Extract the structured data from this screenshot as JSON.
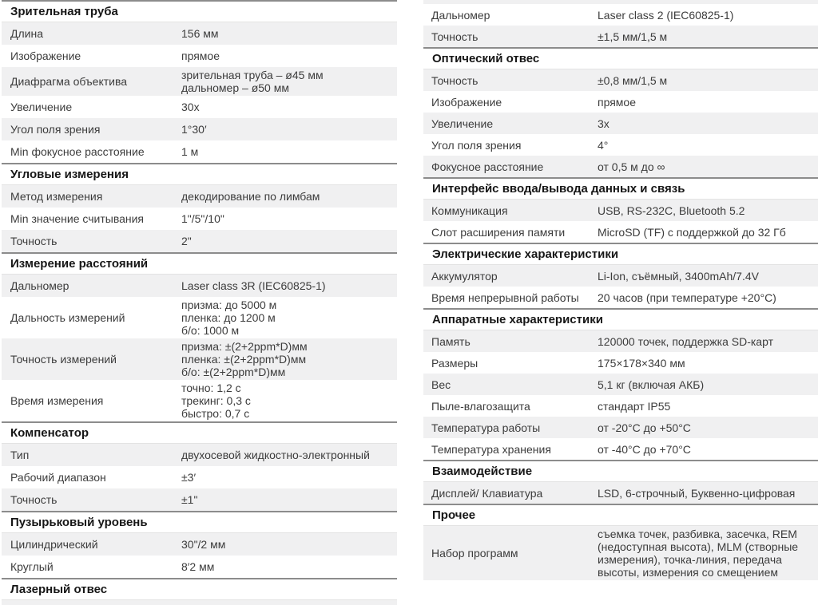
{
  "page": {
    "background": "#ffffff",
    "row_shade_color": "#f0f0f1",
    "header_border_color": "#8c8c8c",
    "text_color": "#3c3c3c"
  },
  "left": {
    "sections": [
      {
        "title": "Зрительная труба",
        "rows": [
          {
            "label": "Длина",
            "value": "156 мм"
          },
          {
            "label": "Изображение",
            "value": "прямое"
          },
          {
            "label": "Диафрагма объектива",
            "value": [
              "зрительная труба – ø45 мм",
              "дальномер – ø50 мм"
            ]
          },
          {
            "label": "Увеличение",
            "value": "30x"
          },
          {
            "label": "Угол поля зрения",
            "value": "1°30′"
          },
          {
            "label": "Min фокусное расстояние",
            "value": "1 м"
          }
        ]
      },
      {
        "title": "Угловые измерения",
        "rows": [
          {
            "label": "Метод измерения",
            "value": "декодирование по лимбам"
          },
          {
            "label": "Min значение считывания",
            "value": "1\"/5\"/10\""
          },
          {
            "label": "Точность",
            "value": "2\""
          }
        ]
      },
      {
        "title": "Измерение расстояний",
        "rows": [
          {
            "label": "Дальномер",
            "value": "Laser class 3R (IEC60825-1)"
          },
          {
            "label": "Дальность измерений",
            "value": [
              "призма: до 5000 м",
              "пленка: до 1200 м",
              "б/о: 1000 м"
            ]
          },
          {
            "label": "Точность измерений",
            "value": [
              "призма: ±(2+2ppm*D)мм",
              "пленка: ±(2+2ppm*D)мм",
              "б/о: ±(2+2ppm*D)мм"
            ]
          },
          {
            "label": "Время измерения",
            "value": [
              "точно: 1,2 с",
              "трекинг: 0,3 с",
              "быстро: 0,7 с"
            ]
          }
        ]
      },
      {
        "title": "Компенсатор",
        "rows": [
          {
            "label": "Тип",
            "value": "двухосевой жидкостно-электронный"
          },
          {
            "label": "Рабочий диапазон",
            "value": "±3′"
          },
          {
            "label": "Точность",
            "value": "±1\""
          }
        ]
      },
      {
        "title": "Пузырьковый уровень",
        "rows": [
          {
            "label": "Цилиндрический",
            "value": "30\"/2 мм"
          },
          {
            "label": "Круглый",
            "value": "8′2 мм"
          }
        ]
      },
      {
        "title": "Лазерный отвес",
        "rows": []
      }
    ]
  },
  "right": {
    "sections": [
      {
        "title": null,
        "shade_offset": 1,
        "rows": [
          {
            "label": "Дальномер",
            "value": "Laser class 2 (IEC60825-1)"
          },
          {
            "label": "Точность",
            "value": "±1,5 мм/1,5 м"
          }
        ]
      },
      {
        "title": "Оптический отвес",
        "rows": [
          {
            "label": "Точность",
            "value": "±0,8 мм/1,5 м"
          },
          {
            "label": "Изображение",
            "value": "прямое"
          },
          {
            "label": "Увеличение",
            "value": "3x"
          },
          {
            "label": "Угол поля зрения",
            "value": "4°"
          },
          {
            "label": "Фокусное расстояние",
            "value": "от 0,5 м до ∞"
          }
        ]
      },
      {
        "title": "Интерфейс ввода/вывода данных и связь",
        "rows": [
          {
            "label": "Коммуникация",
            "value": "USB, RS-232C, Bluetooth 5.2"
          },
          {
            "label": "Слот расширения памяти",
            "value": "MicroSD (TF) с поддержкой до 32 Гб"
          }
        ]
      },
      {
        "title": "Электрические характеристики",
        "rows": [
          {
            "label": "Аккумулятор",
            "value": "Li-Ion, съёмный, 3400mAh/7.4V"
          },
          {
            "label": "Время непрерывной работы",
            "value": "20 часов (при температуре +20°C)"
          }
        ]
      },
      {
        "title": "Аппаратные характеристики",
        "rows": [
          {
            "label": "Память",
            "value": "120000 точек, поддержка SD-карт"
          },
          {
            "label": "Размеры",
            "value": "175×178×340 мм"
          },
          {
            "label": "Вес",
            "value": "5,1 кг (включая АКБ)"
          },
          {
            "label": "Пыле-влагозащита",
            "value": "стандарт IP55"
          },
          {
            "label": "Температура работы",
            "value": "от -20°C до +50°C"
          },
          {
            "label": "Температура хранения",
            "value": "от -40°C до +70°C"
          }
        ]
      },
      {
        "title": "Взаимодействие",
        "rows": [
          {
            "label": "Дисплей/ Клавиатура",
            "value": "LSD, 6-строчный, Буквенно-цифровая"
          }
        ]
      },
      {
        "title": "Прочее",
        "rows": [
          {
            "label": "Набор программ",
            "value": [
              "съемка точек, разбивка, засечка, REM",
              "(недоступная высота), MLM (створные",
              "измерения), точка-линия, передача",
              "высоты, измерения со смещением"
            ]
          }
        ]
      }
    ]
  }
}
